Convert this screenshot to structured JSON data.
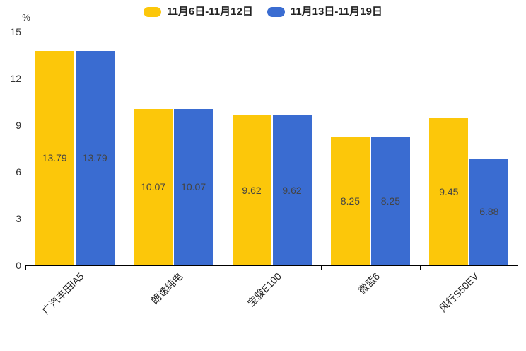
{
  "chart_data": {
    "type": "bar",
    "title": "",
    "unit_label": "%",
    "categories": [
      "广汽丰田iA5",
      "朗逸纯电",
      "宝骏E100",
      "微蓝6",
      "风行S50EV"
    ],
    "series": [
      {
        "name": "11月6日-11月12日",
        "color": "#FCC70A",
        "values": [
          13.79,
          10.07,
          9.62,
          8.25,
          9.45
        ]
      },
      {
        "name": "11月13日-11月19日",
        "color": "#3A6CD1",
        "values": [
          13.79,
          10.07,
          9.62,
          8.25,
          6.88
        ]
      }
    ],
    "y_ticks": [
      0,
      3,
      6,
      9,
      12,
      15
    ],
    "ylim": [
      0,
      15
    ],
    "legend_position": "top",
    "grid": false,
    "bar_label_color": "#444444",
    "axis_color": "#000000"
  }
}
